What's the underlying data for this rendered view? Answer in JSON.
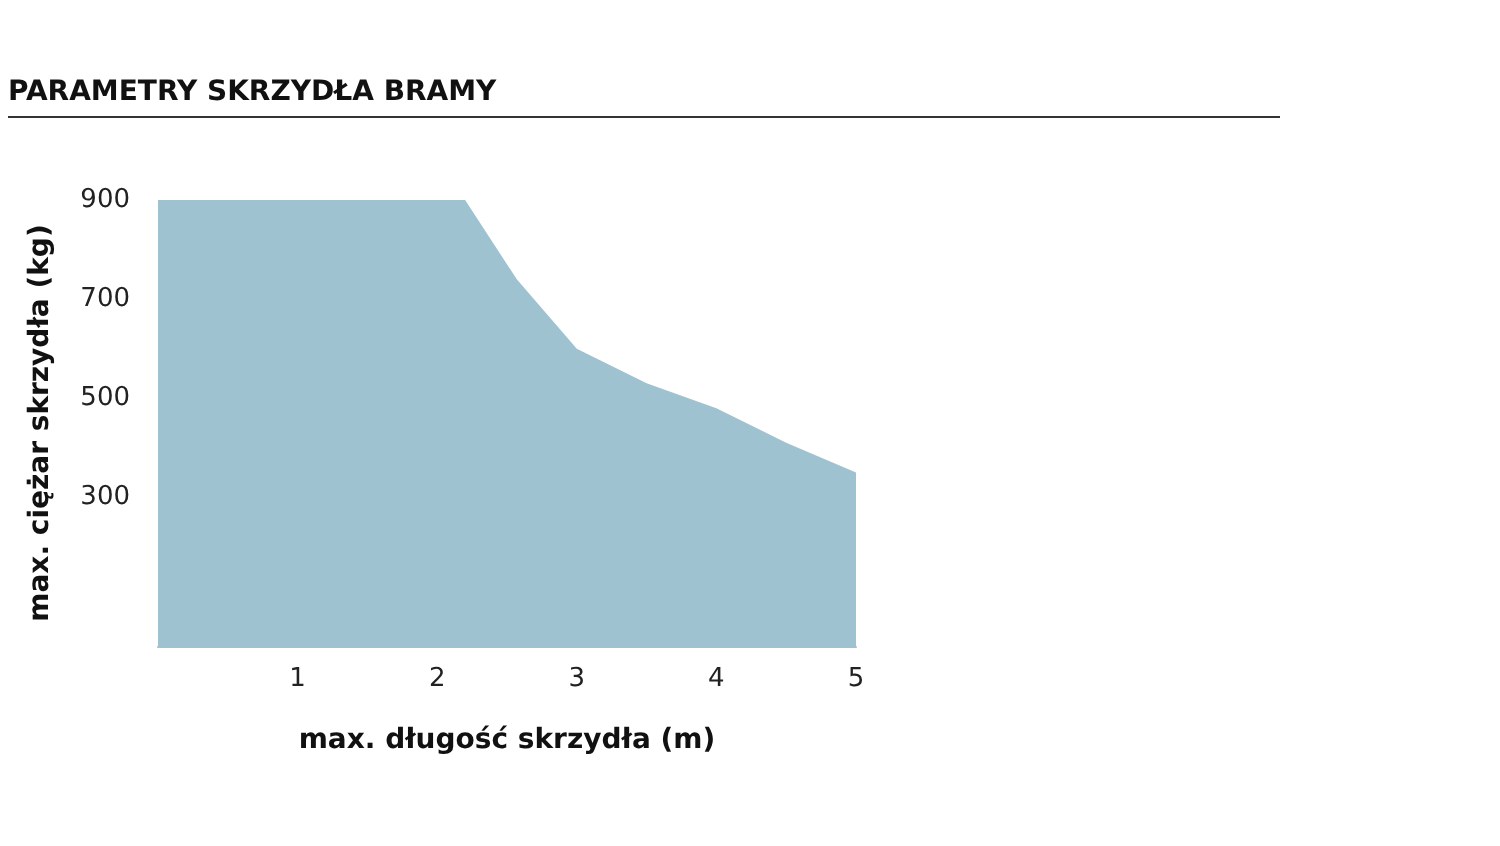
{
  "chart_data": {
    "type": "area",
    "title": "PARAMETRY SKRZYDŁA BRAMY",
    "xlabel": "max. długość skrzydła (m)",
    "ylabel": "max. ciężar skrzydła (kg)",
    "x": [
      0,
      2.2,
      2.57,
      3,
      3.5,
      4,
      4.5,
      5
    ],
    "values": [
      900,
      900,
      740,
      600,
      530,
      480,
      410,
      350
    ],
    "color": "#9fc2d0",
    "xlim": [
      0,
      5
    ],
    "xticks": [
      1,
      2,
      3,
      4,
      5
    ],
    "ylim": [
      0,
      900
    ],
    "yticks": [
      300,
      500,
      700,
      900
    ],
    "grid": false
  }
}
